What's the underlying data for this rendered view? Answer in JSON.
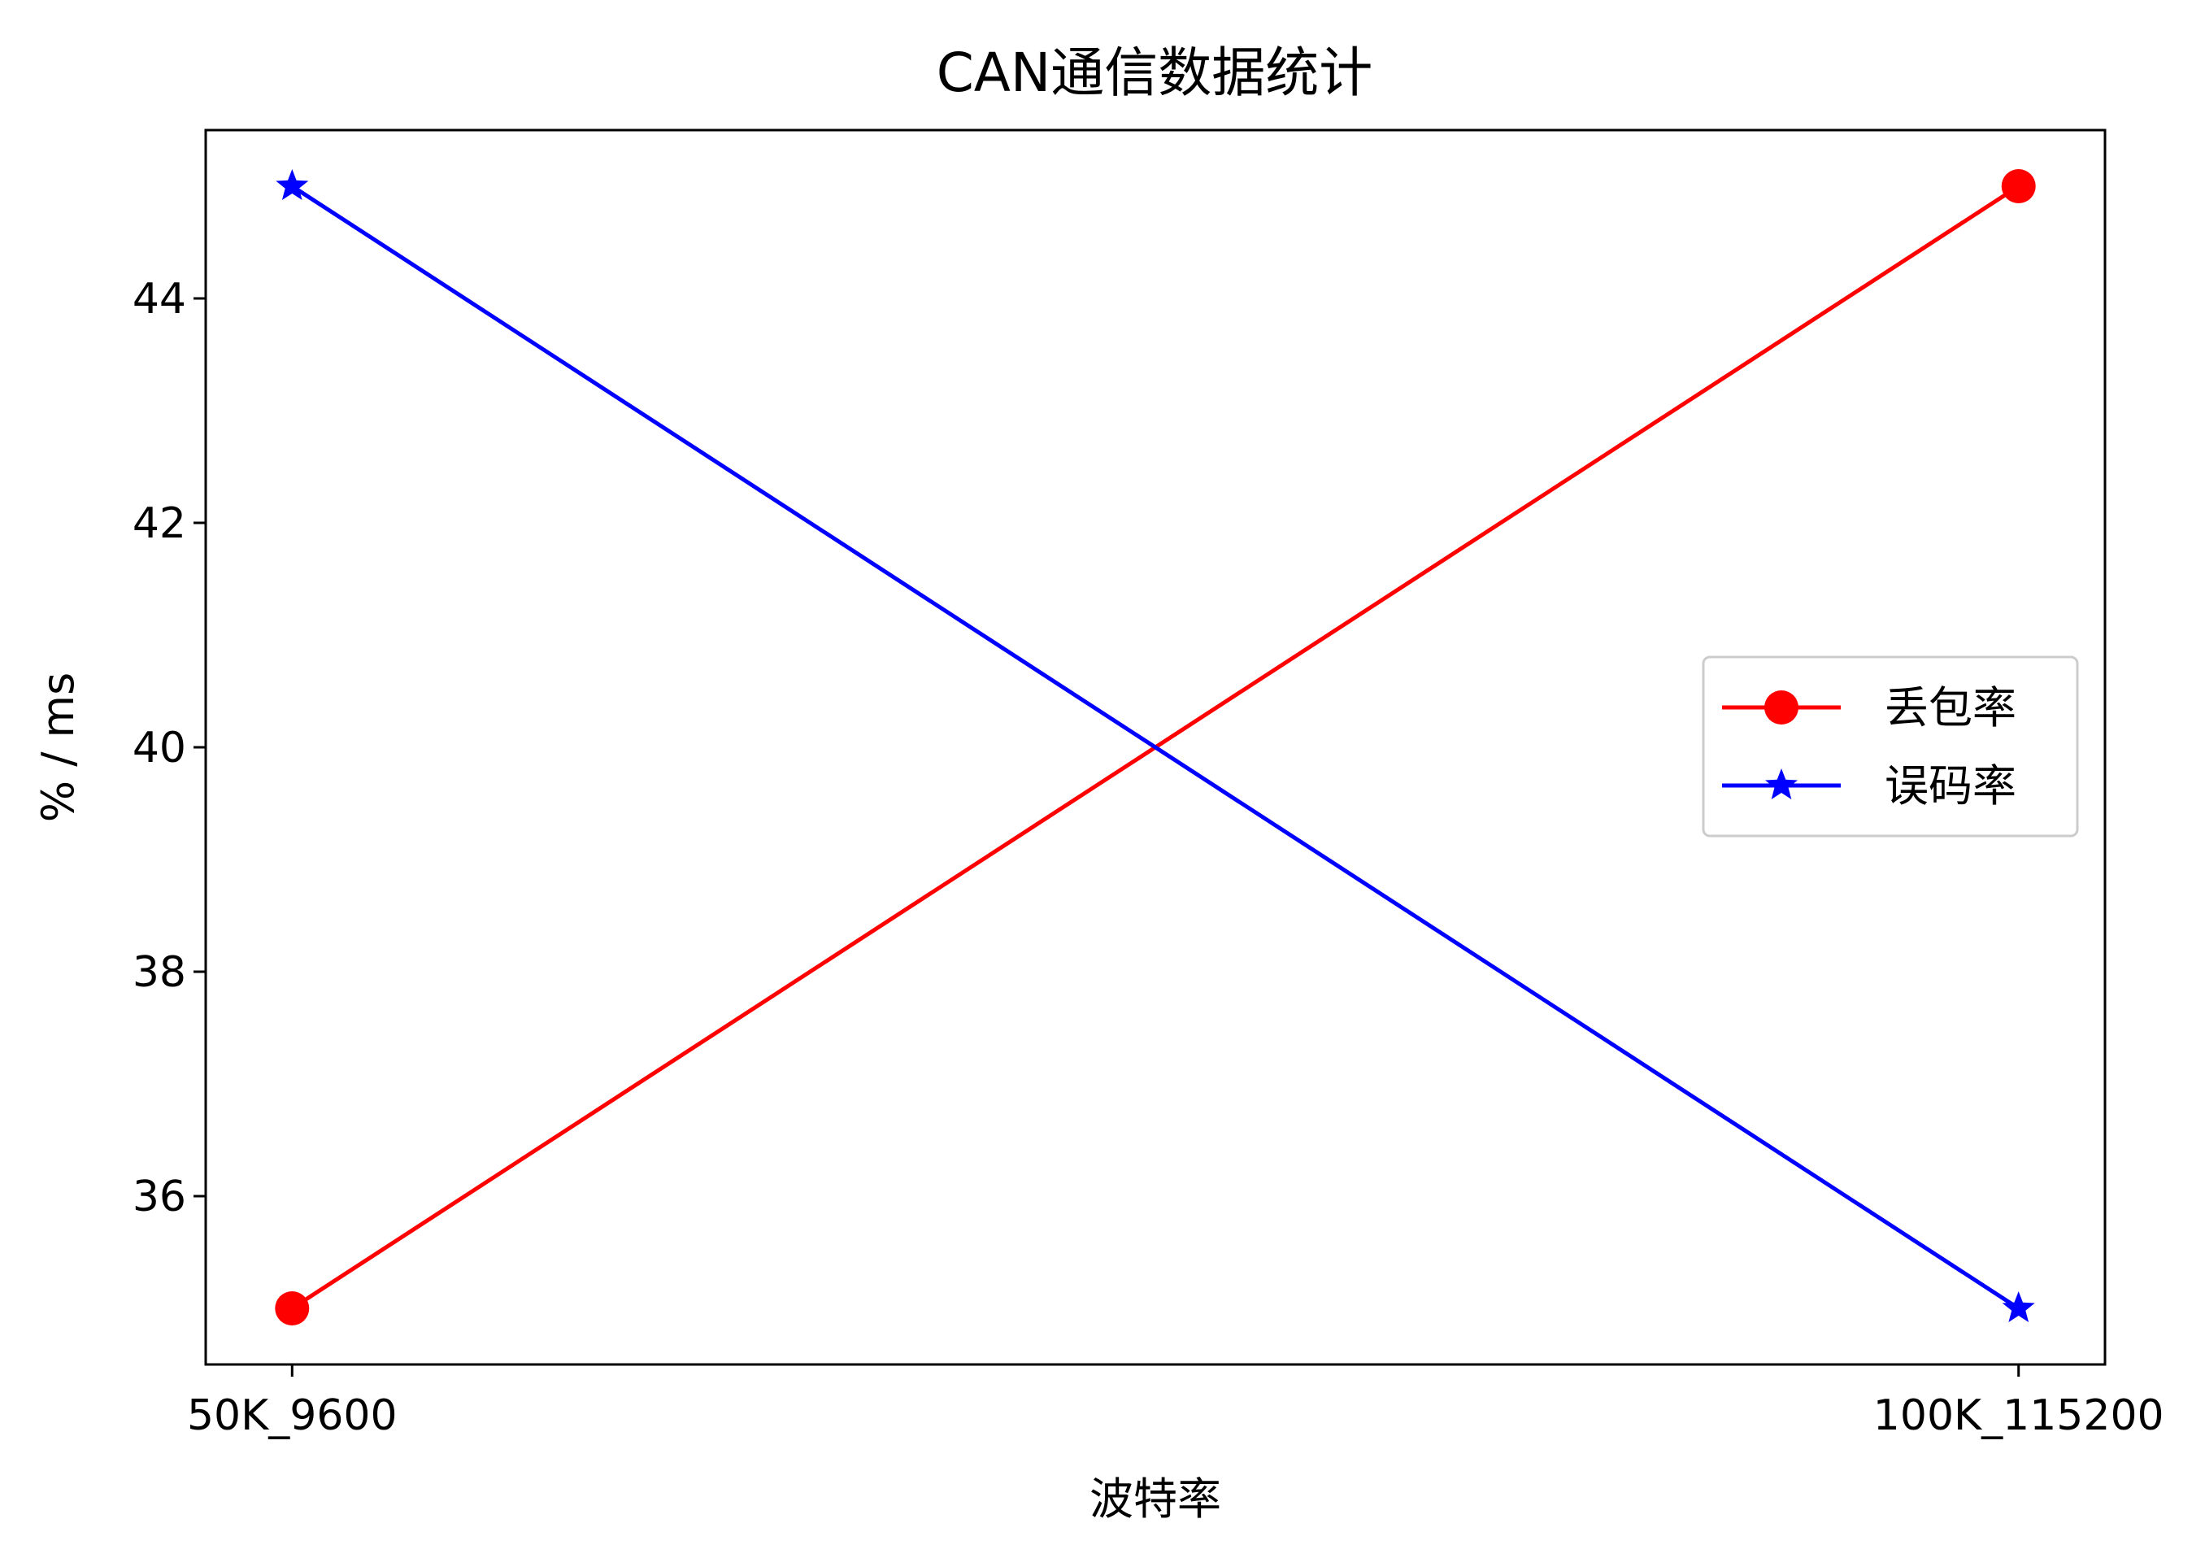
{
  "chart_data": {
    "type": "line",
    "title": "CAN通信数据统计",
    "xlabel": "波特率",
    "ylabel": "% / ms",
    "categories": [
      "50K_9600",
      "100K_115200"
    ],
    "series": [
      {
        "name": "丢包率",
        "values": [
          35,
          45
        ],
        "color": "#ff0000",
        "marker": "circle"
      },
      {
        "name": "误码率",
        "values": [
          45,
          35
        ],
        "color": "#0000ff",
        "marker": "star"
      }
    ],
    "ylim": [
      34.5,
      45.5
    ],
    "yticks": [
      36,
      38,
      40,
      42,
      44
    ],
    "grid": false,
    "legend": "center-right"
  }
}
